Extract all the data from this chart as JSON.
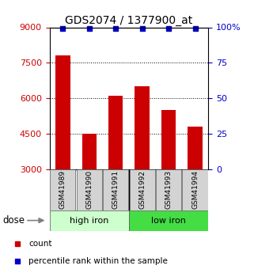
{
  "title": "GDS2074 / 1377900_at",
  "categories": [
    "GSM41989",
    "GSM41990",
    "GSM41991",
    "GSM41992",
    "GSM41993",
    "GSM41994"
  ],
  "bar_values": [
    7800,
    4500,
    6100,
    6500,
    5500,
    4800
  ],
  "percentile_values": [
    99,
    99,
    99,
    99,
    99,
    99
  ],
  "bar_color": "#cc0000",
  "percentile_color": "#0000cc",
  "ylim_left": [
    3000,
    9000
  ],
  "ylim_right": [
    0,
    100
  ],
  "yticks_left": [
    3000,
    4500,
    6000,
    7500,
    9000
  ],
  "yticks_right": [
    0,
    25,
    50,
    75,
    100
  ],
  "grid_values": [
    4500,
    6000,
    7500
  ],
  "group_high_color": "#ccffcc",
  "group_low_color": "#44dd44",
  "groups": [
    {
      "label": "high iron",
      "indices": [
        0,
        1,
        2
      ],
      "color": "#ccffcc"
    },
    {
      "label": "low iron",
      "indices": [
        3,
        4,
        5
      ],
      "color": "#44dd44"
    }
  ],
  "dose_label": "dose",
  "legend_items": [
    {
      "color": "#cc0000",
      "label": "count"
    },
    {
      "color": "#0000cc",
      "label": "percentile rank within the sample"
    }
  ],
  "bar_width": 0.55,
  "title_fontsize": 10,
  "tick_fontsize": 8,
  "label_fontsize": 6.5,
  "group_fontsize": 8,
  "legend_fontsize": 7.5
}
